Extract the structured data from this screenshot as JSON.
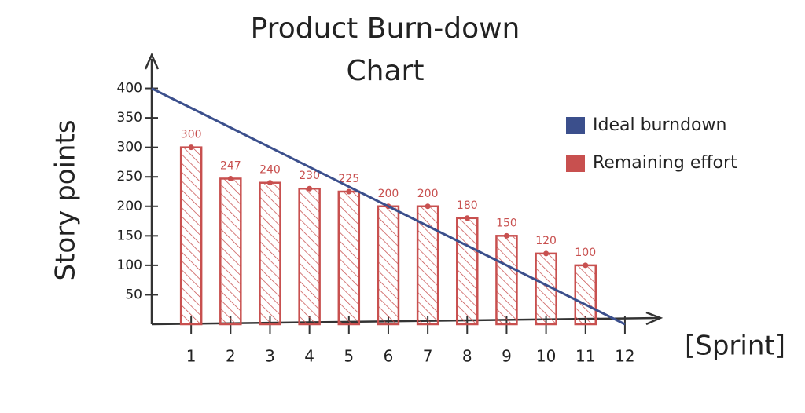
{
  "chart_data": {
    "type": "bar",
    "title": "Product Burn-down Chart",
    "y_label": "Story points",
    "x_label": "[Sprint]",
    "xlim": [
      0,
      12.5
    ],
    "xticks": [
      1,
      2,
      3,
      4,
      5,
      6,
      7,
      8,
      9,
      10,
      11,
      12
    ],
    "ylim": [
      0,
      430
    ],
    "yticks": [
      50,
      100,
      150,
      200,
      250,
      300,
      350,
      400
    ],
    "legend": "top-right",
    "series": [
      {
        "name": "Ideal burndown",
        "type": "line",
        "color": "#3b4f8c",
        "x": [
          0,
          12
        ],
        "values": [
          400,
          0
        ]
      },
      {
        "name": "Remaining effort",
        "type": "bar",
        "color": "#c8504f",
        "x": [
          1,
          2,
          3,
          4,
          5,
          6,
          7,
          8,
          9,
          10,
          11
        ],
        "values": [
          300,
          247,
          240,
          230,
          225,
          200,
          200,
          180,
          150,
          120,
          100
        ]
      }
    ]
  }
}
